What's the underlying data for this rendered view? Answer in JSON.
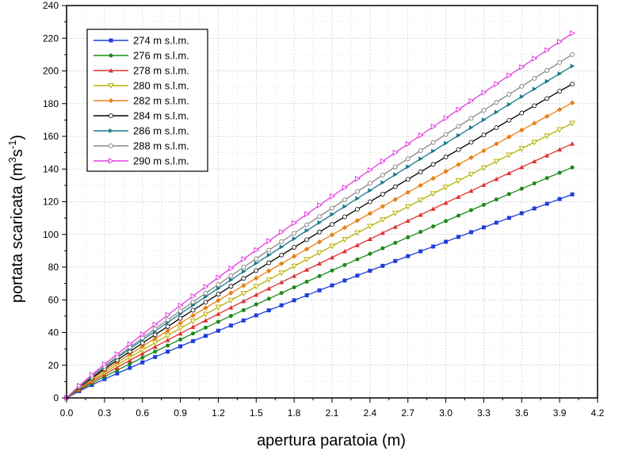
{
  "chart_data": {
    "type": "line",
    "xlabel": "apertura paratoia (m)",
    "ylabel_main": "portata scaricata (m",
    "ylabel_sup1": "3",
    "ylabel_mid": "s",
    "ylabel_sup2": "-1",
    "ylabel_end": ")",
    "xlim": [
      0.0,
      4.2
    ],
    "ylim": [
      0,
      240
    ],
    "xticks": [
      "0.0",
      "0.3",
      "0.6",
      "0.9",
      "1.2",
      "1.5",
      "1.8",
      "2.1",
      "2.4",
      "2.7",
      "3.0",
      "3.3",
      "3.6",
      "3.9",
      "4.2"
    ],
    "yticks": [
      "0",
      "20",
      "40",
      "60",
      "80",
      "100",
      "120",
      "140",
      "160",
      "180",
      "200",
      "220",
      "240"
    ],
    "grid": true,
    "legend_position": "top-left",
    "x_start": 0.0,
    "x_end": 4.0,
    "x_step": 0.1,
    "series": [
      {
        "name": "274 m s.l.m.",
        "color": "#1f3fd8",
        "marker": "square",
        "end_value": 124.5
      },
      {
        "name": "276 m s.l.m.",
        "color": "#1a8a1a",
        "marker": "circle",
        "end_value": 141.0
      },
      {
        "name": "278 m s.l.m.",
        "color": "#e03030",
        "marker": "triangle-up",
        "end_value": 155.5
      },
      {
        "name": "280 m s.l.m.",
        "color": "#b8b000",
        "marker": "triangle-down-open",
        "end_value": 168.0
      },
      {
        "name": "282 m s.l.m.",
        "color": "#e8801a",
        "marker": "diamond",
        "end_value": 180.5
      },
      {
        "name": "284 m s.l.m.",
        "color": "#000000",
        "marker": "circle-open",
        "end_value": 192.0
      },
      {
        "name": "286 m s.l.m.",
        "color": "#1a7a8a",
        "marker": "triangle-right",
        "end_value": 203.0
      },
      {
        "name": "288 m s.l.m.",
        "color": "#888888",
        "marker": "circle-open-gray",
        "end_value": 210.0
      },
      {
        "name": "290 m s.l.m.",
        "color": "#e040e0",
        "marker": "triangle-right-open",
        "end_value": 223.0
      }
    ]
  }
}
